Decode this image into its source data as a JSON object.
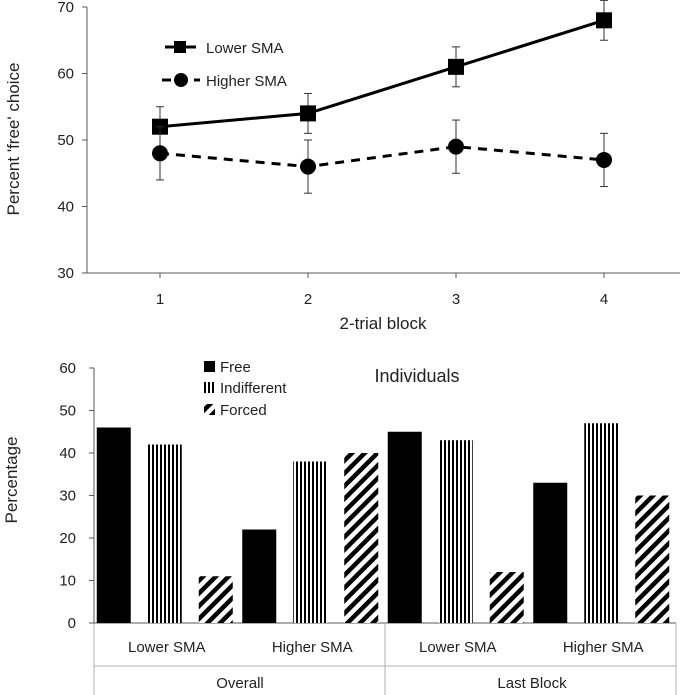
{
  "chart_data": [
    {
      "type": "line",
      "title": "",
      "xlabel": "2-trial block",
      "ylabel": "Percent 'free' choice",
      "x": [
        1,
        2,
        3,
        4
      ],
      "xticks": [
        "1",
        "2",
        "3",
        "4"
      ],
      "ylim": [
        30,
        70
      ],
      "yticks": [
        30,
        40,
        50,
        60,
        70
      ],
      "grid": false,
      "legend_position": "top-left",
      "series": [
        {
          "name": "Lower SMA",
          "marker": "square",
          "line": "solid",
          "values": [
            52,
            54,
            61,
            68
          ],
          "error": [
            3,
            3,
            3,
            3
          ]
        },
        {
          "name": "Higher SMA",
          "marker": "circle",
          "line": "dashed",
          "values": [
            48,
            46,
            49,
            47
          ],
          "error": [
            4,
            4,
            4,
            4
          ]
        }
      ]
    },
    {
      "type": "bar",
      "title": "Individuals",
      "xlabel": "",
      "ylabel": "Percentage",
      "ylim": [
        0,
        60
      ],
      "yticks": [
        0,
        10,
        20,
        30,
        40,
        50,
        60
      ],
      "grid": false,
      "legend_position": "top-left",
      "categories": [
        "Lower SMA",
        "Higher SMA",
        "Lower SMA",
        "Higher SMA"
      ],
      "groups": [
        {
          "label": "Overall",
          "categories": [
            "Lower SMA",
            "Higher SMA"
          ]
        },
        {
          "label": "Last Block",
          "categories": [
            "Lower SMA",
            "Higher SMA"
          ]
        }
      ],
      "series": [
        {
          "name": "Free",
          "pattern": "solid",
          "values": [
            46,
            22,
            45,
            33
          ]
        },
        {
          "name": "Indifferent",
          "pattern": "vertical-stripes",
          "values": [
            42,
            38,
            43,
            47
          ]
        },
        {
          "name": "Forced",
          "pattern": "diagonal-stripes",
          "values": [
            11,
            40,
            12,
            30
          ]
        }
      ]
    }
  ]
}
